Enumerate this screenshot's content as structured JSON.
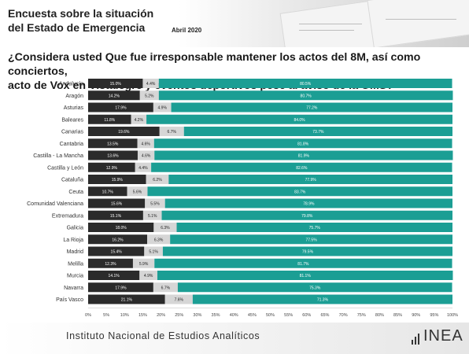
{
  "header": {
    "title_line1": "Encuesta sobre la situación",
    "title_line2": "del Estado de Emergencia",
    "date": "Abril 2020"
  },
  "question": {
    "line1": "¿Considera usted Que fue irresponsable mantener los actos del 8M, así como conciertos,",
    "line2": "acto de Vox en Vistalegre y eventos deportivos pese al aviso de la OMS?"
  },
  "footer": {
    "institute": "Instituto Nacional de Estudios Analíticos",
    "logo_text": "INEA"
  },
  "colors": {
    "series1": "#2b2b2b",
    "series2": "#d6d6d6",
    "series3": "#1b9e94",
    "label_light": "#ffffff",
    "label_dark": "#222222"
  },
  "chart_data": {
    "type": "bar",
    "orientation": "horizontal",
    "stacked": true,
    "categories": [
      "Andalucía",
      "Aragón",
      "Asturias",
      "Baleares",
      "Canarias",
      "Cantabria",
      "Castilla - La Mancha",
      "Castilla y León",
      "Cataluña",
      "Ceuta",
      "Comunidad Valenciana",
      "Extremadura",
      "Galicia",
      "La Rioja",
      "Madrid",
      "Melilla",
      "Murcia",
      "Navarra",
      "País Vasco"
    ],
    "series": [
      {
        "values": [
          15.0,
          14.2,
          17.9,
          11.8,
          19.6,
          13.5,
          13.6,
          12.9,
          15.9,
          10.7,
          15.6,
          15.1,
          18.0,
          16.2,
          15.4,
          12.3,
          14.1,
          17.9,
          21.1
        ],
        "labels": [
          "15.0%",
          "14.2%",
          "17.9%",
          "11.8%",
          "19.6%",
          "13.5%",
          "13.6%",
          "12.9%",
          "15.9%",
          "10.7%",
          "15.6%",
          "15.1%",
          "18.0%",
          "16.2%",
          "15.4%",
          "12.3%",
          "14.1%",
          "17.9%",
          "21.1%"
        ]
      },
      {
        "values": [
          4.4,
          5.2,
          4.9,
          4.2,
          6.7,
          4.6,
          4.6,
          4.4,
          6.2,
          5.6,
          5.5,
          5.1,
          6.3,
          6.3,
          5.1,
          5.9,
          4.9,
          6.7,
          7.6
        ],
        "labels": [
          "4.4%",
          "5.2%",
          "4.9%",
          "4.2%",
          "6.7%",
          "4.6%",
          "4.6%",
          "4.4%",
          "6.2%",
          "5.6%",
          "5.5%",
          "5.1%",
          "6.3%",
          "6.3%",
          "5.1%",
          "5.9%",
          "4.9%",
          "6.7%",
          "7.6%"
        ]
      },
      {
        "values": [
          80.5,
          80.7,
          77.2,
          84.0,
          73.7,
          81.8,
          81.9,
          82.6,
          77.9,
          83.7,
          78.9,
          79.8,
          75.7,
          77.5,
          79.5,
          81.7,
          81.1,
          75.3,
          71.3
        ],
        "labels": [
          "80.5%",
          "80.7%",
          "77.2%",
          "84.0%",
          "73.7%",
          "81.8%",
          "81.9%",
          "82.6%",
          "77.9%",
          "83.7%",
          "78.9%",
          "79.8%",
          "75.7%",
          "77.5%",
          "79.5%",
          "81.7%",
          "81.1%",
          "75.3%",
          "71.3%"
        ]
      }
    ],
    "xlim": [
      0,
      100
    ],
    "xticks": [
      "0%",
      "5%",
      "10%",
      "15%",
      "20%",
      "25%",
      "30%",
      "35%",
      "40%",
      "45%",
      "50%",
      "55%",
      "60%",
      "65%",
      "70%",
      "75%",
      "80%",
      "85%",
      "90%",
      "95%",
      "100%"
    ],
    "grid": false,
    "legend": "none"
  }
}
